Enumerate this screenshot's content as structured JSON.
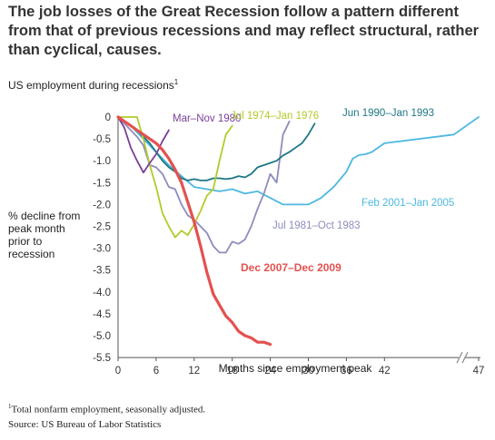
{
  "title": "The job losses of the Great Recession follow a pattern different from that of previous recessions and may reflect structural, rather than cyclical, causes.",
  "subtitle": "US employment during recessions",
  "subtitle_footnote_mark": "1",
  "footnote_mark": "1",
  "footnote": "Total nonfarm employment, seasonally adjusted.",
  "source": "Source: US Bureau of Labor Statistics",
  "chart_data": {
    "type": "line",
    "ylabel": "% decline from peak month prior to recession",
    "xlabel": "Months since employment peak",
    "xlim": [
      0,
      47
    ],
    "ylim": [
      -5.5,
      0
    ],
    "x_break": "between 42 and 47",
    "x_ticks": [
      "0",
      "6",
      "12",
      "18",
      "24",
      "30",
      "36",
      "42",
      "47"
    ],
    "y_ticks": [
      "0",
      "-0.5",
      "-1.0",
      "-1.5",
      "-2.0",
      "-2.5",
      "-3.0",
      "-3.5",
      "-4.0",
      "-4.5",
      "-5.0",
      "-5.5"
    ],
    "grid": false,
    "series": [
      {
        "name": "Mar–Nov 1980",
        "color": "#7b3f98",
        "x": [
          0,
          1,
          2,
          3,
          4,
          5,
          6,
          7,
          8
        ],
        "y": [
          0,
          -0.25,
          -0.7,
          -1.0,
          -1.27,
          -1.05,
          -0.85,
          -0.55,
          -0.3
        ]
      },
      {
        "name": "Jul 1974–Jan 1976",
        "color": "#b5c92a",
        "x": [
          0,
          1,
          2,
          3,
          4,
          5,
          6,
          7,
          8,
          9,
          10,
          11,
          12,
          13,
          14,
          15,
          16,
          17,
          18
        ],
        "y": [
          0,
          0,
          0,
          0,
          -0.5,
          -1.1,
          -1.6,
          -2.2,
          -2.5,
          -2.75,
          -2.6,
          -2.7,
          -2.45,
          -2.15,
          -1.8,
          -1.65,
          -1.0,
          -0.4,
          -0.2
        ]
      },
      {
        "name": "Jun 1990–Jan 1993",
        "color": "#1e7785",
        "x": [
          0,
          1,
          2,
          3,
          4,
          5,
          6,
          7,
          8,
          9,
          10,
          11,
          12,
          13,
          14,
          15,
          16,
          17,
          18,
          19,
          20,
          21,
          22,
          23,
          24,
          25,
          26,
          27,
          28,
          29,
          30,
          31
        ],
        "y": [
          0,
          -0.1,
          -0.2,
          -0.3,
          -0.45,
          -0.6,
          -0.8,
          -1.0,
          -1.15,
          -1.25,
          -1.4,
          -1.45,
          -1.42,
          -1.45,
          -1.45,
          -1.4,
          -1.4,
          -1.42,
          -1.4,
          -1.35,
          -1.38,
          -1.3,
          -1.15,
          -1.1,
          -1.05,
          -1.0,
          -0.88,
          -0.8,
          -0.7,
          -0.6,
          -0.4,
          -0.15
        ]
      },
      {
        "name": "Feb 2001–Jan 2005",
        "color": "#4db8e0",
        "x": [
          0,
          2,
          4,
          6,
          8,
          10,
          12,
          14,
          16,
          18,
          20,
          22,
          24,
          26,
          28,
          30,
          32,
          34,
          36,
          37,
          38,
          39,
          40,
          42,
          43,
          44,
          45,
          46,
          47
        ],
        "y": [
          0,
          -0.2,
          -0.5,
          -0.8,
          -1.1,
          -1.35,
          -1.6,
          -1.65,
          -1.7,
          -1.65,
          -1.75,
          -1.7,
          -1.85,
          -2.0,
          -2.0,
          -2.0,
          -1.85,
          -1.6,
          -1.25,
          -0.95,
          -0.87,
          -0.85,
          -0.8,
          -0.6,
          -0.4,
          -0.3,
          -0.2,
          -0.1,
          0
        ]
      },
      {
        "name": "Jul 1981–Oct 1983",
        "color": "#8e8cbd",
        "x": [
          0,
          1,
          2,
          3,
          4,
          5,
          6,
          7,
          8,
          9,
          10,
          11,
          12,
          13,
          14,
          15,
          16,
          17,
          18,
          19,
          20,
          21,
          22,
          23,
          24,
          25,
          26,
          27
        ],
        "y": [
          0,
          -0.15,
          -0.3,
          -0.45,
          -0.65,
          -1.1,
          -1.15,
          -1.3,
          -1.6,
          -1.65,
          -2.0,
          -2.25,
          -2.35,
          -2.5,
          -2.65,
          -2.95,
          -3.1,
          -3.1,
          -2.85,
          -2.9,
          -2.8,
          -2.5,
          -2.1,
          -1.75,
          -1.3,
          -1.5,
          -0.4,
          -0.1
        ]
      },
      {
        "name": "Dec 2007–Dec 2009",
        "color": "#e4514f",
        "x": [
          0,
          1,
          2,
          3,
          4,
          5,
          6,
          7,
          8,
          9,
          10,
          11,
          12,
          13,
          14,
          15,
          16,
          17,
          18,
          19,
          20,
          21,
          22,
          23,
          24
        ],
        "y": [
          0,
          -0.1,
          -0.2,
          -0.3,
          -0.4,
          -0.5,
          -0.6,
          -0.75,
          -0.95,
          -1.2,
          -1.5,
          -1.95,
          -2.4,
          -2.95,
          -3.55,
          -4.05,
          -4.3,
          -4.55,
          -4.7,
          -4.9,
          -5.0,
          -5.05,
          -5.15,
          -5.15,
          -5.2
        ]
      }
    ]
  }
}
